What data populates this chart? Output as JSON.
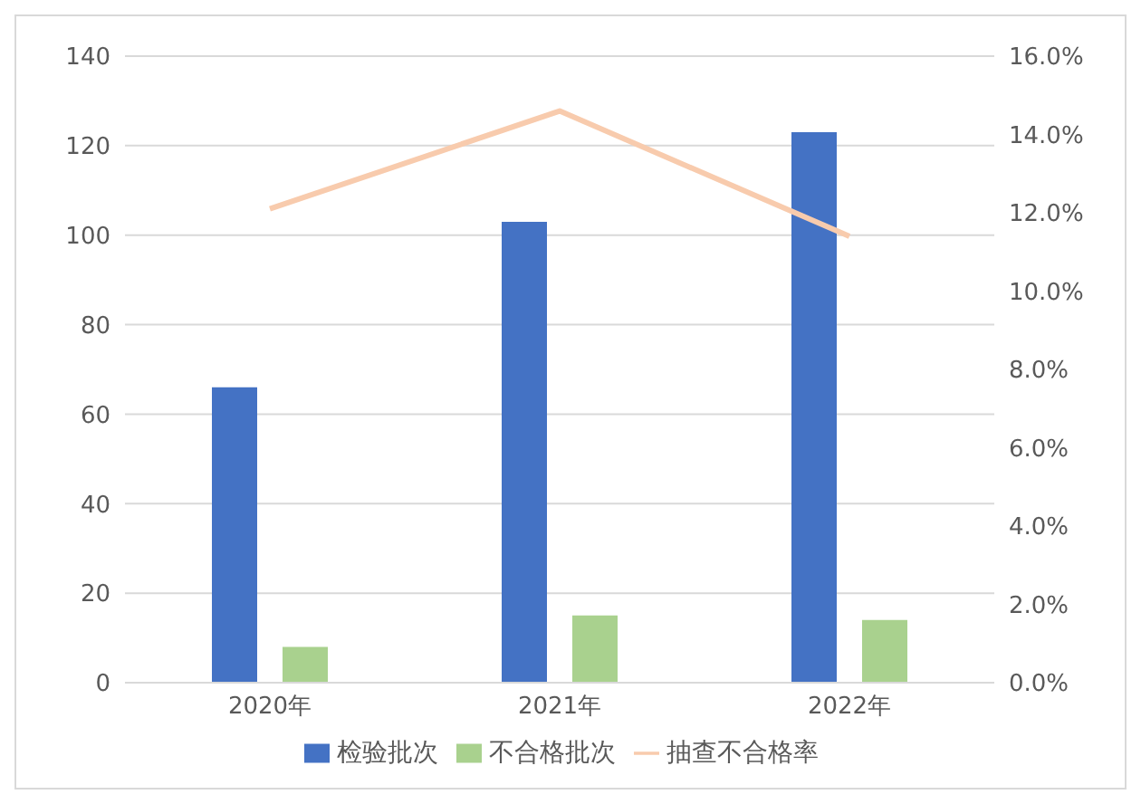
{
  "chart_data": {
    "type": "bar",
    "categories": [
      "2020年",
      "2021年",
      "2022年"
    ],
    "series": [
      {
        "name": "检验批次",
        "color": "#4472c4",
        "values": [
          66,
          103,
          123
        ]
      },
      {
        "name": "不合格批次",
        "color": "#a9d18e",
        "values": [
          8,
          15,
          14
        ]
      },
      {
        "name": "抽查不合格率",
        "type": "line",
        "axis": "y2",
        "color": "#f8cbad",
        "values": [
          12.1,
          14.6,
          11.4
        ]
      }
    ],
    "ylim": [
      0,
      140
    ],
    "yticks": [
      0,
      20,
      40,
      60,
      80,
      100,
      120,
      140
    ],
    "y2lim": [
      0,
      16
    ],
    "y2ticks": [
      {
        "value": 0,
        "label": "0.0%"
      },
      {
        "value": 2,
        "label": "2.0%"
      },
      {
        "value": 4,
        "label": "4.0%"
      },
      {
        "value": 6,
        "label": "6.0%"
      },
      {
        "value": 8,
        "label": "8.0%"
      },
      {
        "value": 10,
        "label": "10.0%"
      },
      {
        "value": 12,
        "label": "12.0%"
      },
      {
        "value": 14,
        "label": "14.0%"
      },
      {
        "value": 16,
        "label": "16.0%"
      }
    ],
    "grid": "y",
    "legend": "bottom",
    "marker": "none"
  }
}
